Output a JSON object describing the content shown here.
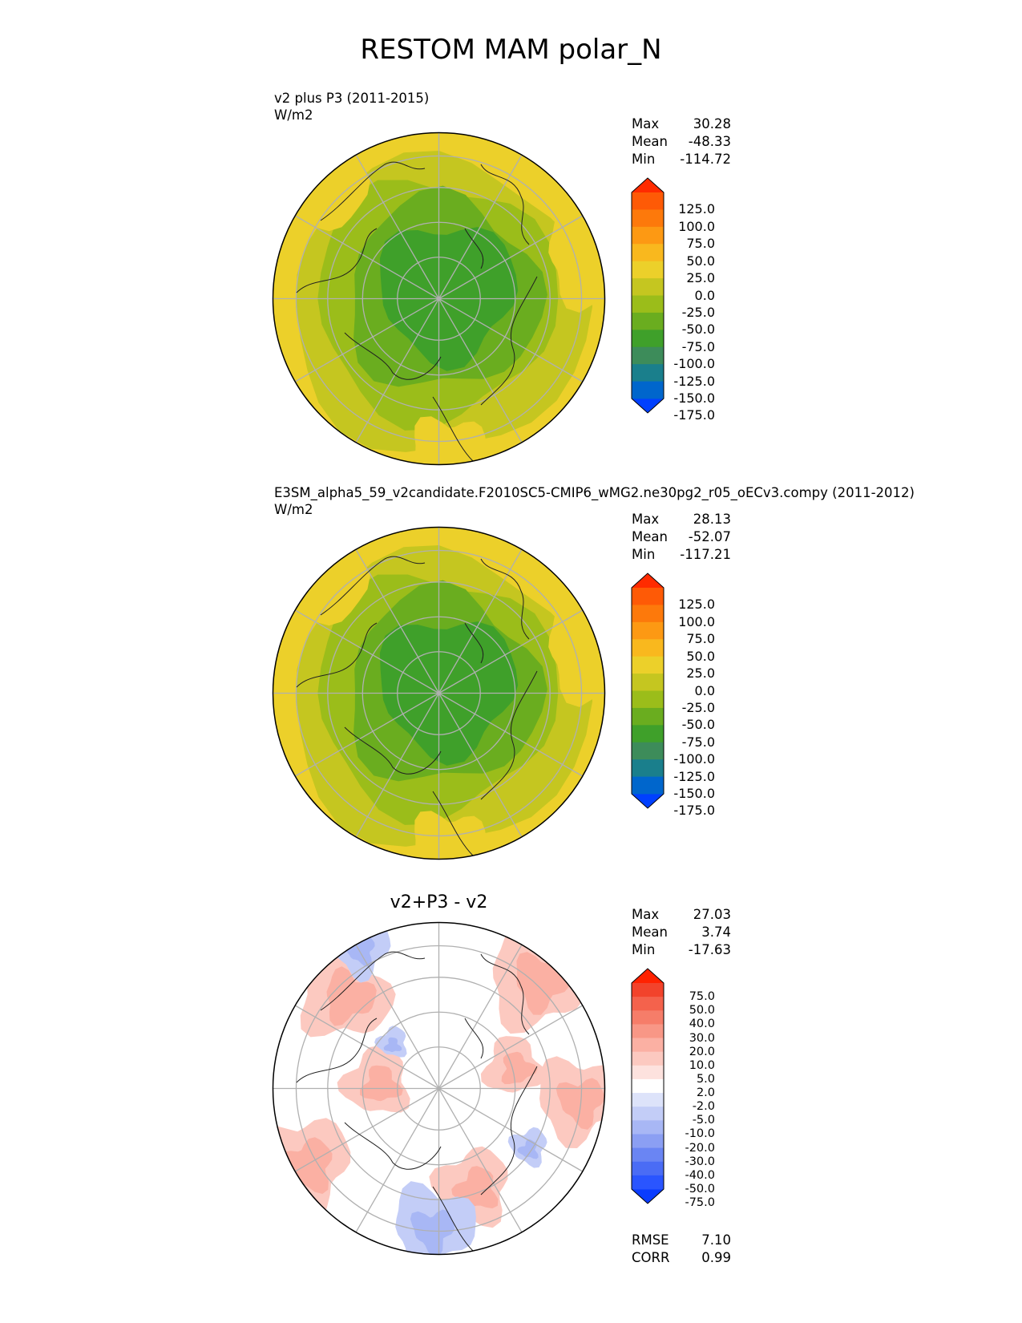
{
  "figure": {
    "title": "RESTOM MAM polar_N"
  },
  "panels": [
    {
      "id": "test",
      "subtitle_line1": "v2 plus P3 (2011-2015)",
      "subtitle_line2": "W/m2",
      "center_title": "",
      "stats": {
        "max_label": "Max",
        "max": "30.28",
        "mean_label": "Mean",
        "mean": "-48.33",
        "min_label": "Min",
        "min": "-114.72"
      },
      "colorbar": {
        "ticks": [
          "125.0",
          "100.0",
          "75.0",
          "50.0",
          "25.0",
          "0.0",
          "-25.0",
          "-50.0",
          "-75.0",
          "-100.0",
          "-125.0",
          "-150.0",
          "-175.0"
        ],
        "colors": [
          "#0040ff",
          "#0066cc",
          "#1a7f8c",
          "#3d8c5a",
          "#3fa02a",
          "#6aad1f",
          "#9bbd1a",
          "#c5c620",
          "#ecd02a",
          "#f9b81e",
          "#fd9913",
          "#fd790b",
          "#fe5a06",
          "#ff2b00"
        ]
      }
    },
    {
      "id": "reference",
      "subtitle_line1": "E3SM_alpha5_59_v2candidate.F2010SC5-CMIP6_wMG2.ne30pg2_r05_oECv3.compy (2011-2012)",
      "subtitle_line2": "W/m2",
      "center_title": "",
      "stats": {
        "max_label": "Max",
        "max": "28.13",
        "mean_label": "Mean",
        "mean": "-52.07",
        "min_label": "Min",
        "min": "-117.21"
      },
      "colorbar": {
        "ticks": [
          "125.0",
          "100.0",
          "75.0",
          "50.0",
          "25.0",
          "0.0",
          "-25.0",
          "-50.0",
          "-75.0",
          "-100.0",
          "-125.0",
          "-150.0",
          "-175.0"
        ],
        "colors": [
          "#0040ff",
          "#0066cc",
          "#1a7f8c",
          "#3d8c5a",
          "#3fa02a",
          "#6aad1f",
          "#9bbd1a",
          "#c5c620",
          "#ecd02a",
          "#f9b81e",
          "#fd9913",
          "#fd790b",
          "#fe5a06",
          "#ff2b00"
        ]
      }
    },
    {
      "id": "difference",
      "subtitle_line1": "",
      "subtitle_line2": "",
      "center_title": "v2+P3 - v2",
      "stats": {
        "max_label": "Max",
        "max": "27.03",
        "mean_label": "Mean",
        "mean": "3.74",
        "min_label": "Min",
        "min": "-17.63"
      },
      "colorbar": {
        "ticks": [
          "75.0",
          "50.0",
          "40.0",
          "30.0",
          "20.0",
          "10.0",
          "5.0",
          "2.0",
          "-2.0",
          "-5.0",
          "-10.0",
          "-20.0",
          "-30.0",
          "-40.0",
          "-50.0",
          "-75.0"
        ],
        "colors": [
          "#0a3cff",
          "#2a55ff",
          "#4a6cf5",
          "#6a85f3",
          "#8b9ff3",
          "#a8b7f5",
          "#c3cdf7",
          "#dde3fa",
          "#ffffff",
          "#fde2de",
          "#fcc9c0",
          "#fbb0a3",
          "#f89786",
          "#f67d69",
          "#f4624c",
          "#f2432b",
          "#ff2200"
        ]
      },
      "error_stats": {
        "rmse_label": "RMSE",
        "rmse": "7.10",
        "corr_label": "CORR",
        "corr": "0.99"
      }
    }
  ]
}
